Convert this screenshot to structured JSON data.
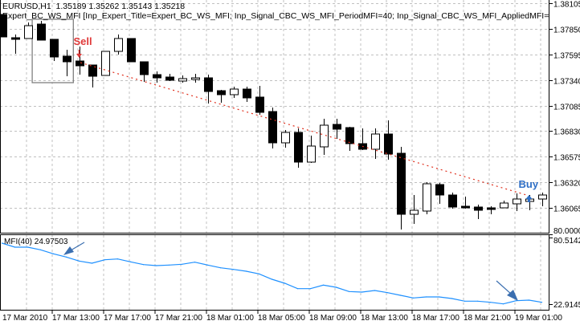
{
  "window": {
    "symbol_line": "EURUSD,H1  1.35189 1.35262 1.35143 1.35218",
    "expert_line": "Expert_BC_WS_MFI [Inp_Expert_Title=Expert_BC_WS_MFI; Inp_Signal_CBC_WS_MFI_PeriodMFI=40; Inp_Signal_CBC_WS_MFI_AppliedMFI=0; Inp_Signal_C"
  },
  "chart_data": [
    {
      "type": "candlestick",
      "symbol": "EURUSD",
      "timeframe": "H1",
      "ylim": [
        1.35817,
        1.38137
      ],
      "grid": true,
      "colors": {
        "bull": "#ffffff",
        "bear": "#000000",
        "grid": "#c0c0c0",
        "trade_line": "#e0301e",
        "rectangle": "#808080"
      },
      "price_ticks": [
        "1.38105",
        "1.37850",
        "1.37595",
        "1.37340",
        "1.37085",
        "1.36830",
        "1.36575",
        "1.36320",
        "1.36065"
      ],
      "time_labels": [
        {
          "bar": 0,
          "label": "17 Mar 2010"
        },
        {
          "bar": 4,
          "label": "17 Mar 13:00"
        },
        {
          "bar": 8,
          "label": "17 Mar 17:00"
        },
        {
          "bar": 12,
          "label": "17 Mar 21:00"
        },
        {
          "bar": 16,
          "label": "18 Mar 01:00"
        },
        {
          "bar": 20,
          "label": "18 Mar 05:00"
        },
        {
          "bar": 24,
          "label": "18 Mar 09:00"
        },
        {
          "bar": 28,
          "label": "18 Mar 13:00"
        },
        {
          "bar": 32,
          "label": "18 Mar 17:00"
        },
        {
          "bar": 36,
          "label": "18 Mar 21:00"
        },
        {
          "bar": 40,
          "label": "19 Mar 01:00"
        }
      ],
      "candles_ohlc": [
        [
          1.37993,
          1.37993,
          1.37769,
          1.37769
        ],
        [
          1.37761,
          1.37793,
          1.37601,
          1.37745
        ],
        [
          1.37753,
          1.37913,
          1.37753,
          1.37881
        ],
        [
          1.37897,
          1.37929,
          1.37737,
          1.37737
        ],
        [
          1.37745,
          1.37745,
          1.37529,
          1.37569
        ],
        [
          1.37577,
          1.37641,
          1.37377,
          1.37521
        ],
        [
          1.37529,
          1.37673,
          1.37393,
          1.37481
        ],
        [
          1.37489,
          1.37489,
          1.37265,
          1.37377
        ],
        [
          1.37385,
          1.37625,
          1.37385,
          1.37625
        ],
        [
          1.37625,
          1.37793,
          1.37593,
          1.37753
        ],
        [
          1.37753,
          1.37753,
          1.37521,
          1.37521
        ],
        [
          1.37521,
          1.37521,
          1.37321,
          1.37393
        ],
        [
          1.37393,
          1.37425,
          1.37313,
          1.37361
        ],
        [
          1.37369,
          1.37401,
          1.37329,
          1.37337
        ],
        [
          1.37329,
          1.37385,
          1.37313,
          1.37353
        ],
        [
          1.37345,
          1.37401,
          1.37313,
          1.37361
        ],
        [
          1.37361,
          1.37393,
          1.37105,
          1.37225
        ],
        [
          1.37233,
          1.37241,
          1.37113,
          1.37193
        ],
        [
          1.37193,
          1.37273,
          1.37161,
          1.37249
        ],
        [
          1.37249,
          1.37273,
          1.37121,
          1.37161
        ],
        [
          1.37169,
          1.37281,
          1.36993,
          1.37017
        ],
        [
          1.37025,
          1.37065,
          1.36657,
          1.36713
        ],
        [
          1.36713,
          1.36841,
          1.36665,
          1.36817
        ],
        [
          1.36817,
          1.36857,
          1.36465,
          1.36521
        ],
        [
          1.36521,
          1.36785,
          1.36513,
          1.36681
        ],
        [
          1.36673,
          1.36953,
          1.36593,
          1.36889
        ],
        [
          1.36897,
          1.36953,
          1.36753,
          1.36849
        ],
        [
          1.36865,
          1.36873,
          1.36633,
          1.36705
        ],
        [
          1.36705,
          1.36857,
          1.36641,
          1.36649
        ],
        [
          1.36649,
          1.36857,
          1.36553,
          1.36801
        ],
        [
          1.36801,
          1.36937,
          1.36545,
          1.36601
        ],
        [
          1.36609,
          1.36673,
          1.35849,
          1.36001
        ],
        [
          1.36001,
          1.36193,
          1.35905,
          1.36041
        ],
        [
          1.36033,
          1.36321,
          1.36001,
          1.36305
        ],
        [
          1.36297,
          1.36313,
          1.36105,
          1.36193
        ],
        [
          1.36193,
          1.36217,
          1.36057,
          1.36073
        ],
        [
          1.36081,
          1.36177,
          1.36057,
          1.36065
        ],
        [
          1.36073,
          1.36097,
          1.35953,
          1.36041
        ],
        [
          1.36065,
          1.36081,
          1.36001,
          1.36049
        ],
        [
          1.36065,
          1.36137,
          1.36065,
          1.36113
        ],
        [
          1.36105,
          1.36209,
          1.36033,
          1.36153
        ],
        [
          1.36129,
          1.36193,
          1.36041,
          1.36153
        ],
        [
          1.36153,
          1.36217,
          1.36081,
          1.36193
        ]
      ],
      "signals": [
        {
          "type": "sell",
          "label": "Sell",
          "bar": 6,
          "price": 1.37577,
          "color": "#e03a3a"
        },
        {
          "type": "buy",
          "label": "Buy",
          "bar": 41,
          "price": 1.36161,
          "color": "#2f6fc6"
        }
      ],
      "trade_line": {
        "from_bar": 6.1,
        "from_price": 1.37513,
        "to_bar": 40.8,
        "to_price": 1.36193
      },
      "rectangle": {
        "from_bar": 2.35,
        "to_bar": 5.55,
        "top_price": 1.37945,
        "bottom_price": 1.37313
      }
    },
    {
      "type": "line",
      "title": "MFI(40) 24.97503",
      "ylim": [
        17.95,
        82.55
      ],
      "y_ticks": [
        "80.0000",
        "80.5142",
        "22.9145"
      ],
      "color": "#1e90ff",
      "values": [
        75.07,
        71.67,
        71.67,
        69.43,
        66.03,
        63.31,
        59.91,
        58.07,
        60.99,
        61.67,
        59.23,
        56.91,
        56.03,
        56.51,
        57.19,
        58.95,
        56.51,
        54.19,
        52.83,
        51.27,
        49.03,
        44.47,
        41.07,
        36.51,
        36.51,
        39.51,
        37.67,
        34.07,
        33.59,
        34.95,
        33.11,
        30.87,
        28.63,
        29.51,
        29.51,
        28.15,
        25.91,
        25.91,
        24.95,
        23.59,
        26.31,
        26.79,
        24.98
      ]
    }
  ]
}
